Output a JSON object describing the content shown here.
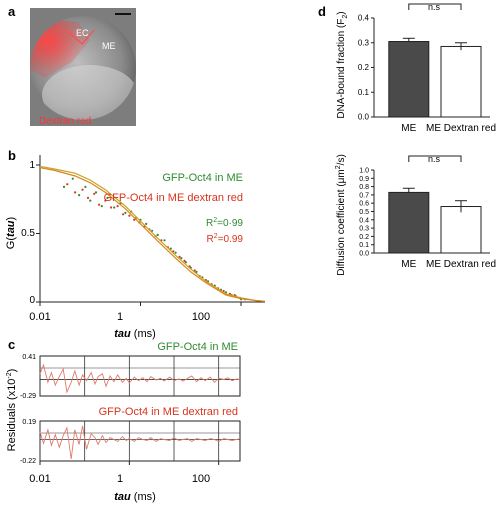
{
  "panel_labels": {
    "a": "a",
    "b": "b",
    "c": "c",
    "d": "d"
  },
  "embryo": {
    "ec_label": "EC",
    "me_label": "ME",
    "dye_label": "Dextran red",
    "colors": {
      "background": "#7d7d7d",
      "dye": "#ff2a2a",
      "label": "#ff3333"
    }
  },
  "colors": {
    "green": "#2e8b2e",
    "red": "#d9341e",
    "olive": "#c9a227",
    "axis": "#222222",
    "bar_dark": "#4a4a4a",
    "bar_light": "#ffffff"
  },
  "chart_data": [
    {
      "id": "fcs_curves",
      "type": "line",
      "xlabel_italic": "tau",
      "xlabel_unit": " (ms)",
      "ylabel_pre": "G(",
      "ylabel_italic": "tau",
      "ylabel_post": ")",
      "xscale": "log",
      "xlim": [
        0.01,
        300
      ],
      "ylim": [
        0,
        1
      ],
      "xticks": [
        0.01,
        1,
        100
      ],
      "xtick_labels": [
        "0.01",
        "1",
        "100"
      ],
      "yticks": [
        0,
        0.5,
        1
      ],
      "ytick_labels": [
        "0",
        "0.5",
        "1"
      ],
      "legend": [
        {
          "text": "GFP-Oct4 in ME",
          "color": "#2e8b2e"
        },
        {
          "text": "GFP-Oct4 in ME dextran red",
          "color": "#d9341e"
        }
      ],
      "r2": [
        {
          "prefix": "R",
          "sup": "2",
          "suffix": "=0·99",
          "color": "#2e8b2e"
        },
        {
          "prefix": "R",
          "sup": "2",
          "suffix": "=0.99",
          "color": "#d9341e"
        }
      ],
      "series": [
        {
          "name": "GFP-Oct4 in ME",
          "kind": "points",
          "color": "#2e8b2e",
          "x": [
            0.03,
            0.045,
            0.06,
            0.08,
            0.1,
            0.13,
            0.17,
            0.22,
            0.3,
            0.4,
            0.5,
            0.65,
            0.8,
            1.0,
            1.3,
            1.7,
            2.2,
            3,
            4,
            5,
            6.5,
            8,
            10,
            13,
            17,
            22,
            30,
            40,
            50,
            65,
            80,
            100
          ],
          "y": [
            0.84,
            0.9,
            0.78,
            0.84,
            0.74,
            0.8,
            0.7,
            0.76,
            0.69,
            0.72,
            0.65,
            0.66,
            0.61,
            0.6,
            0.57,
            0.52,
            0.49,
            0.45,
            0.39,
            0.36,
            0.32,
            0.29,
            0.25,
            0.22,
            0.18,
            0.15,
            0.12,
            0.09,
            0.07,
            0.05,
            0.04,
            0.02
          ]
        },
        {
          "name": "GFP-Oct4 in ME dextran red",
          "kind": "points",
          "color": "#d9341e",
          "x": [
            0.035,
            0.05,
            0.07,
            0.09,
            0.12,
            0.15,
            0.2,
            0.26,
            0.35,
            0.45,
            0.6,
            0.75,
            0.95,
            1.2,
            1.5,
            2,
            2.6,
            3.5,
            4.5,
            6,
            7.5,
            9.5,
            12,
            15,
            20,
            26,
            35,
            45,
            60,
            75,
            95,
            120
          ],
          "y": [
            0.86,
            0.8,
            0.82,
            0.76,
            0.79,
            0.71,
            0.74,
            0.69,
            0.7,
            0.64,
            0.63,
            0.6,
            0.58,
            0.55,
            0.53,
            0.48,
            0.45,
            0.4,
            0.37,
            0.33,
            0.3,
            0.26,
            0.23,
            0.19,
            0.16,
            0.13,
            0.1,
            0.08,
            0.06,
            0.05,
            0.03,
            0.02
          ]
        },
        {
          "name": "fit ME",
          "kind": "fit",
          "color": "#c9a227",
          "x": [
            0.01,
            0.02,
            0.05,
            0.1,
            0.2,
            0.5,
            1,
            2,
            5,
            10,
            20,
            50,
            100,
            200,
            300
          ],
          "y": [
            0.99,
            0.97,
            0.94,
            0.89,
            0.82,
            0.7,
            0.59,
            0.48,
            0.34,
            0.24,
            0.15,
            0.06,
            0.03,
            0.01,
            0.005
          ]
        },
        {
          "name": "fit ME dextran red",
          "kind": "fit",
          "color": "#d9861e",
          "x": [
            0.01,
            0.02,
            0.05,
            0.1,
            0.2,
            0.5,
            1,
            2,
            5,
            10,
            20,
            50,
            100,
            200,
            300
          ],
          "y": [
            0.98,
            0.96,
            0.92,
            0.87,
            0.8,
            0.68,
            0.57,
            0.46,
            0.32,
            0.22,
            0.14,
            0.05,
            0.025,
            0.01,
            0.005
          ]
        }
      ]
    },
    {
      "id": "residuals",
      "type": "line",
      "ylabel": "Residuals",
      "ylabel_unit_pre": "(x10",
      "ylabel_unit_sup": "-2",
      "ylabel_unit_post": ")",
      "xlabel_italic": "tau",
      "xlabel_unit": " (ms)",
      "xscale": "log",
      "xlim": [
        0.01,
        300
      ],
      "xticks": [
        0.01,
        1,
        100
      ],
      "xtick_labels": [
        "0.01",
        "1",
        "100"
      ],
      "subplots": [
        {
          "title": "GFP-Oct4 in ME",
          "title_color": "#2e8b2e",
          "ylim": [
            -0.29,
            0.41
          ],
          "ytick_labels": [
            "0.41",
            "-0.29"
          ],
          "color": "#e07a6a",
          "x": [
            0.01,
            0.012,
            0.015,
            0.018,
            0.022,
            0.027,
            0.033,
            0.04,
            0.05,
            0.06,
            0.075,
            0.09,
            0.11,
            0.14,
            0.17,
            0.2,
            0.25,
            0.3,
            0.37,
            0.45,
            0.55,
            0.7,
            0.85,
            1,
            1.3,
            1.6,
            2,
            2.5,
            3,
            4,
            5,
            6,
            8,
            10,
            13,
            16,
            20,
            25,
            32,
            40,
            50,
            65,
            80,
            100,
            130,
            160,
            200,
            250,
            300
          ],
          "y": [
            0.1,
            0.25,
            -0.05,
            0.12,
            -0.1,
            0.05,
            0.18,
            -0.22,
            -0.05,
            0.15,
            -0.1,
            0.08,
            -0.02,
            0.12,
            -0.08,
            0.05,
            0.1,
            -0.12,
            0.06,
            -0.04,
            0.08,
            -0.05,
            0.02,
            -0.06,
            0.04,
            -0.02,
            0.03,
            -0.04,
            0.05,
            -0.01,
            0.02,
            -0.03,
            0.04,
            -0.02,
            0.01,
            -0.03,
            0.02,
            0.06,
            -0.04,
            0.03,
            -0.02,
            0.04,
            -0.05,
            0.02,
            0.0,
            0.03,
            -0.02,
            0.01,
            0.0
          ]
        },
        {
          "title": "GFP-Oct4 in ME dextran red",
          "title_color": "#d9341e",
          "ylim": [
            -0.22,
            0.19
          ],
          "ytick_labels": [
            "0.19",
            "-0.22"
          ],
          "color": "#e07a6a",
          "x": [
            0.01,
            0.012,
            0.015,
            0.018,
            0.022,
            0.027,
            0.033,
            0.04,
            0.05,
            0.06,
            0.075,
            0.09,
            0.11,
            0.14,
            0.17,
            0.2,
            0.25,
            0.3,
            0.37,
            0.45,
            0.55,
            0.7,
            0.85,
            1,
            1.3,
            1.6,
            2,
            2.5,
            3,
            4,
            5,
            6,
            8,
            10,
            13,
            16,
            20,
            25,
            32,
            40,
            50,
            65,
            80,
            100,
            130,
            160,
            200,
            250,
            300
          ],
          "y": [
            0.08,
            -0.04,
            0.1,
            -0.06,
            0.05,
            -0.08,
            0.04,
            0.12,
            -0.2,
            0.1,
            -0.05,
            0.14,
            -0.1,
            0.06,
            0.02,
            -0.05,
            0.04,
            -0.03,
            0.02,
            0.0,
            -0.02,
            0.03,
            -0.01,
            0.01,
            -0.02,
            0.02,
            0.0,
            -0.01,
            0.02,
            -0.02,
            0.01,
            0.0,
            -0.01,
            0.02,
            -0.01,
            0.0,
            0.01,
            -0.02,
            0.01,
            0.0,
            -0.01,
            0.01,
            0.0,
            -0.02,
            0.01,
            0.0,
            -0.01,
            0.0,
            0.01
          ]
        }
      ]
    },
    {
      "id": "dna_bound",
      "type": "bar",
      "ylabel_pre": "DNA-bound fraction (F",
      "ylabel_sub": "2",
      "ylabel_post": ")",
      "ylim": [
        0,
        0.4
      ],
      "yticks": [
        0.0,
        0.1,
        0.2,
        0.3,
        0.4
      ],
      "ytick_labels": [
        "0.0",
        "0.1",
        "0.2",
        "0.3",
        "0.4"
      ],
      "categories": [
        "ME",
        "ME Dextran red"
      ],
      "values": [
        0.305,
        0.285
      ],
      "errors": [
        0.013,
        0.015
      ],
      "annotation": "n.s"
    },
    {
      "id": "diffusion",
      "type": "bar",
      "ylabel_pre": "Diffusion coefficient (μm",
      "ylabel_sup": "2",
      "ylabel_post": "/s)",
      "ylim": [
        0,
        1.0
      ],
      "yticks": [
        0.0,
        0.1,
        0.2,
        0.3,
        0.4,
        0.5,
        0.6,
        0.7,
        0.8,
        0.9,
        1.0
      ],
      "ytick_labels": [
        "0.0",
        "0.1",
        "0.2",
        "0.3",
        "0.4",
        "0.5",
        "0.6",
        "0.7",
        "0.8",
        "0.9",
        "1.0"
      ],
      "categories": [
        "ME",
        "ME Dextran red"
      ],
      "values": [
        0.73,
        0.56
      ],
      "errors": [
        0.05,
        0.07
      ],
      "annotation": "n.s"
    }
  ]
}
